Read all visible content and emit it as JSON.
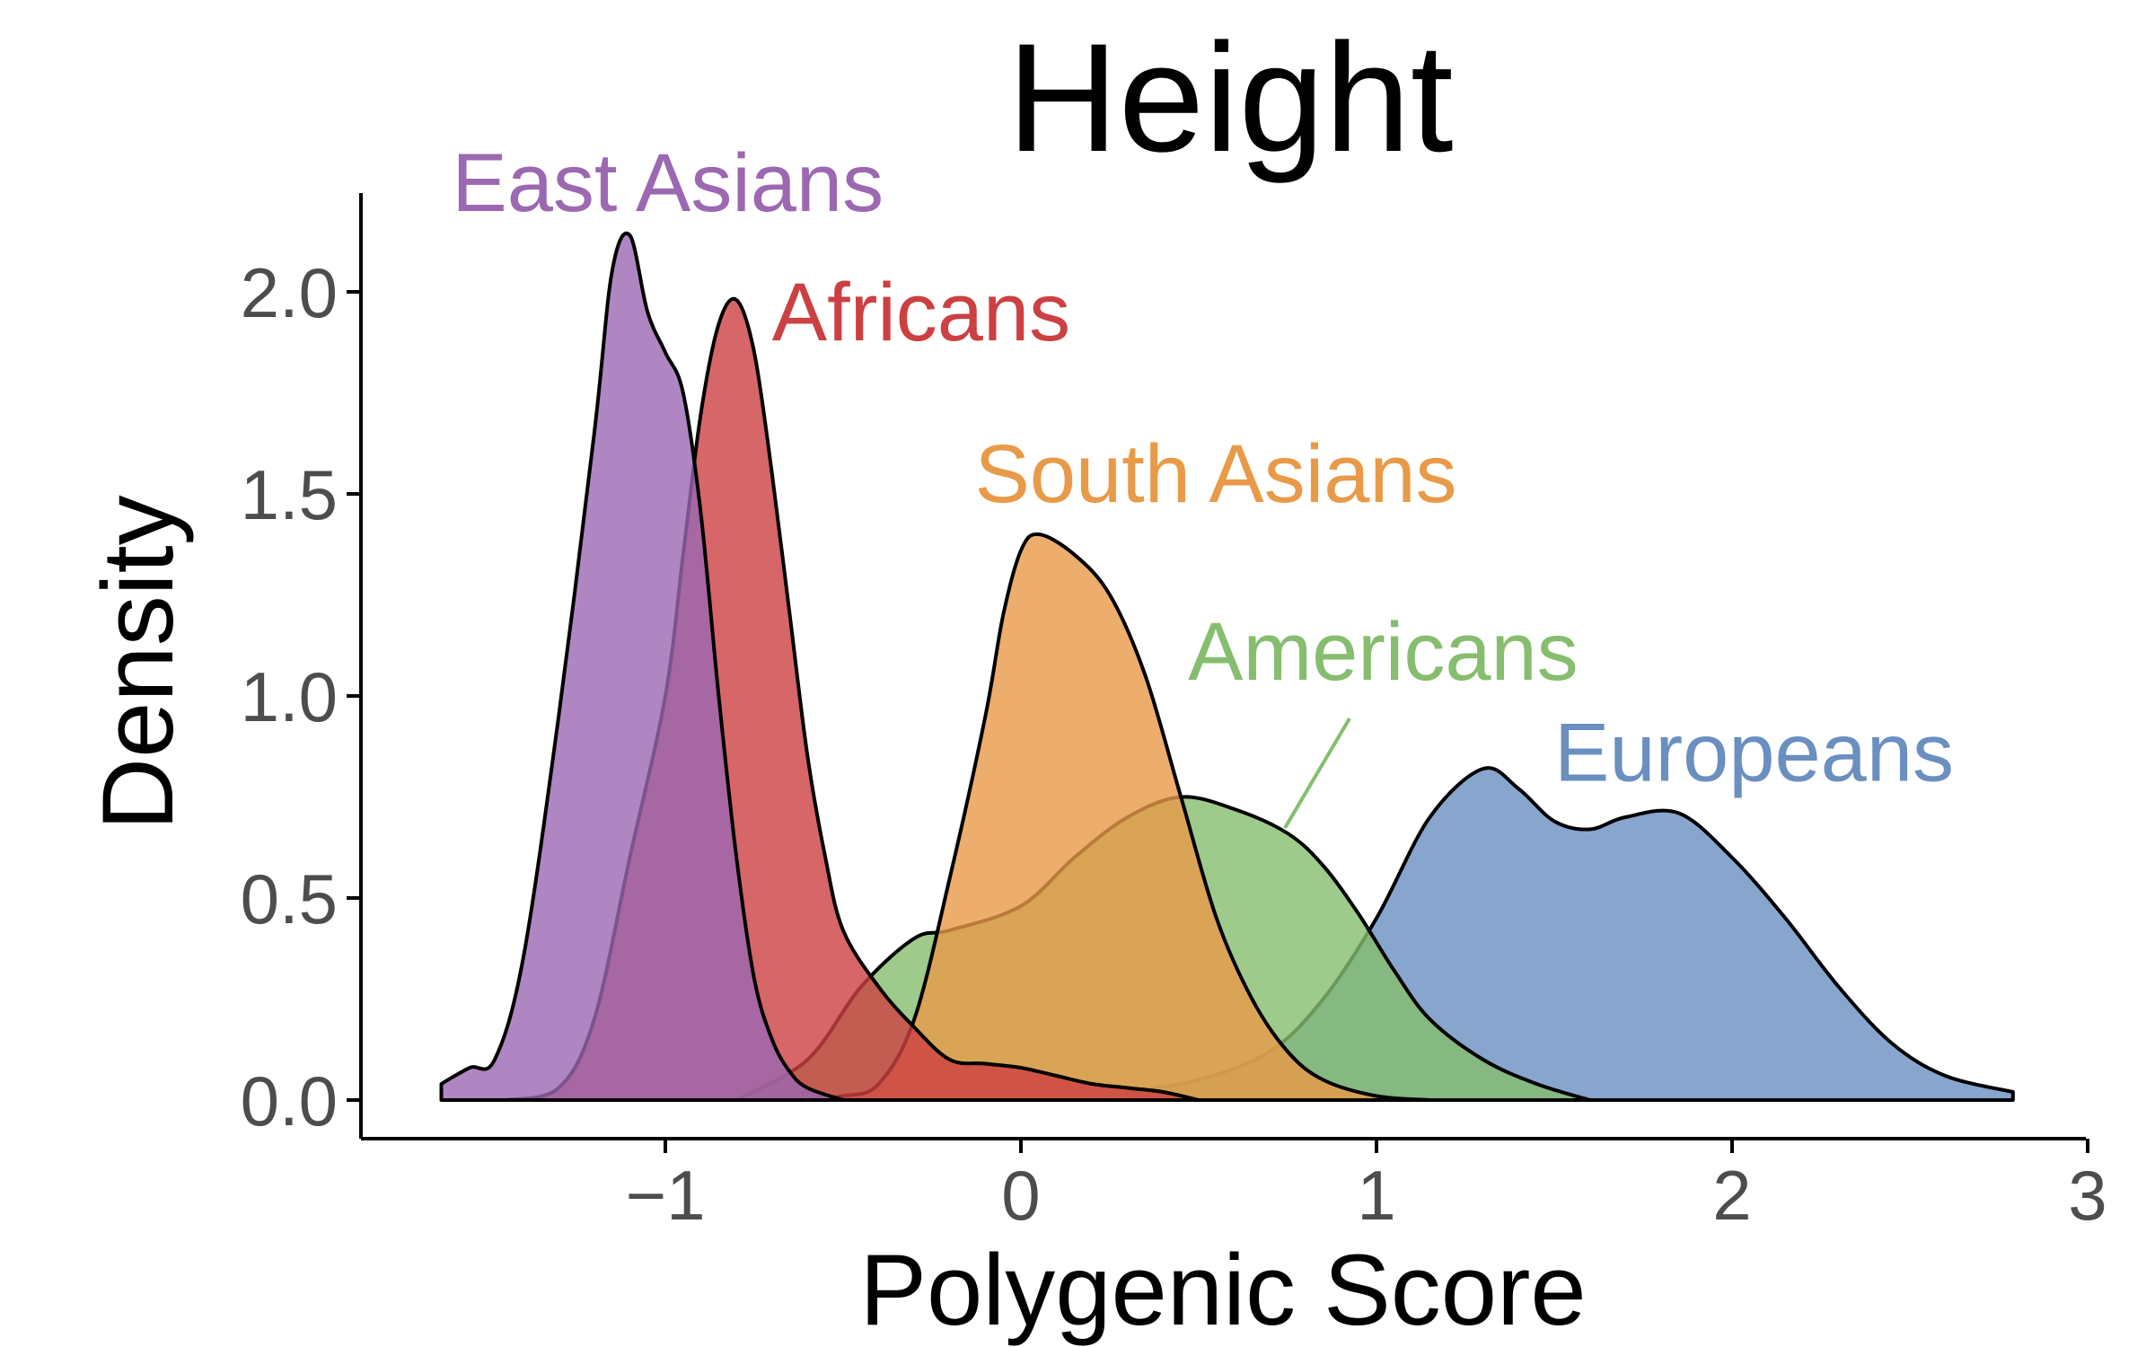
{
  "chart_data": {
    "type": "area",
    "title": "Height",
    "xlabel": "Polygenic Score",
    "ylabel": "Density",
    "xlim": [
      -1.8,
      3.0
    ],
    "ylim": [
      -0.1,
      2.2
    ],
    "xticks": [
      -1,
      0,
      1,
      2,
      3
    ],
    "xtick_labels": [
      "−1",
      "0",
      "1",
      "2",
      "3"
    ],
    "yticks": [
      0.0,
      0.5,
      1.0,
      1.5,
      2.0
    ],
    "ytick_labels": [
      "0.0",
      "0.5",
      "1.0",
      "1.5",
      "2.0"
    ],
    "grid": false,
    "legend": "direct labels",
    "series": [
      {
        "name": "Europeans",
        "color": "#6a8fc0",
        "x": [
          0.3,
          0.5,
          0.7,
          0.85,
          1.0,
          1.15,
          1.3,
          1.4,
          1.5,
          1.6,
          1.7,
          1.85,
          2.0,
          2.15,
          2.3,
          2.45,
          2.6,
          2.79
        ],
        "y": [
          0.02,
          0.05,
          0.12,
          0.25,
          0.45,
          0.7,
          0.82,
          0.77,
          0.69,
          0.67,
          0.7,
          0.71,
          0.6,
          0.45,
          0.28,
          0.14,
          0.06,
          0.02
        ]
      },
      {
        "name": "Americans",
        "color": "#86bd6e",
        "x": [
          -0.8,
          -0.6,
          -0.45,
          -0.3,
          -0.2,
          0.0,
          0.15,
          0.3,
          0.45,
          0.6,
          0.75,
          0.85,
          0.95,
          1.05,
          1.15,
          1.3,
          1.45,
          1.6
        ],
        "y": [
          0.0,
          0.1,
          0.28,
          0.4,
          0.42,
          0.48,
          0.6,
          0.7,
          0.75,
          0.72,
          0.66,
          0.58,
          0.46,
          0.32,
          0.2,
          0.1,
          0.04,
          0.0
        ]
      },
      {
        "name": "South Asians",
        "color": "#e89a48",
        "x": [
          -0.65,
          -0.5,
          -0.4,
          -0.3,
          -0.2,
          -0.1,
          -0.05,
          0.0,
          0.05,
          0.15,
          0.25,
          0.35,
          0.45,
          0.55,
          0.65,
          0.75,
          0.85,
          1.0,
          1.15
        ],
        "y": [
          0.0,
          0.01,
          0.04,
          0.2,
          0.55,
          0.95,
          1.2,
          1.36,
          1.4,
          1.35,
          1.25,
          1.05,
          0.75,
          0.45,
          0.25,
          0.12,
          0.05,
          0.01,
          0.0
        ]
      },
      {
        "name": "Africans",
        "color": "#cc4042",
        "x": [
          -1.45,
          -1.3,
          -1.2,
          -1.1,
          -1.0,
          -0.95,
          -0.9,
          -0.85,
          -0.8,
          -0.75,
          -0.7,
          -0.65,
          -0.6,
          -0.55,
          -0.5,
          -0.4,
          -0.3,
          -0.2,
          -0.1,
          0.0,
          0.1,
          0.2,
          0.3,
          0.4,
          0.5
        ],
        "y": [
          0.0,
          0.03,
          0.2,
          0.6,
          1.0,
          1.35,
          1.7,
          1.92,
          1.98,
          1.85,
          1.55,
          1.2,
          0.85,
          0.6,
          0.42,
          0.28,
          0.18,
          0.1,
          0.09,
          0.08,
          0.06,
          0.04,
          0.03,
          0.02,
          0.0
        ]
      },
      {
        "name": "East Asians",
        "color": "#9b68b1",
        "x": [
          -1.63,
          -1.55,
          -1.48,
          -1.4,
          -1.3,
          -1.2,
          -1.15,
          -1.1,
          -1.05,
          -1.0,
          -0.95,
          -0.9,
          -0.85,
          -0.8,
          -0.75,
          -0.7,
          -0.65,
          -0.6,
          -0.5
        ],
        "y": [
          0.04,
          0.08,
          0.1,
          0.35,
          0.95,
          1.65,
          2.05,
          2.14,
          1.95,
          1.85,
          1.75,
          1.45,
          1.0,
          0.6,
          0.3,
          0.15,
          0.07,
          0.03,
          0.0
        ]
      }
    ],
    "annotations": [
      {
        "text": "East Asians",
        "series": "East Asians",
        "x": -1.6,
        "y": 2.2
      },
      {
        "text": "Africans",
        "series": "Africans",
        "x": -0.7,
        "y": 1.88
      },
      {
        "text": "South Asians",
        "series": "South Asians",
        "x": -0.13,
        "y": 1.48
      },
      {
        "text": "Americans",
        "series": "Americans",
        "x": 0.47,
        "y": 1.04
      },
      {
        "text": "Europeans",
        "series": "Europeans",
        "x": 1.5,
        "y": 0.79
      }
    ]
  }
}
